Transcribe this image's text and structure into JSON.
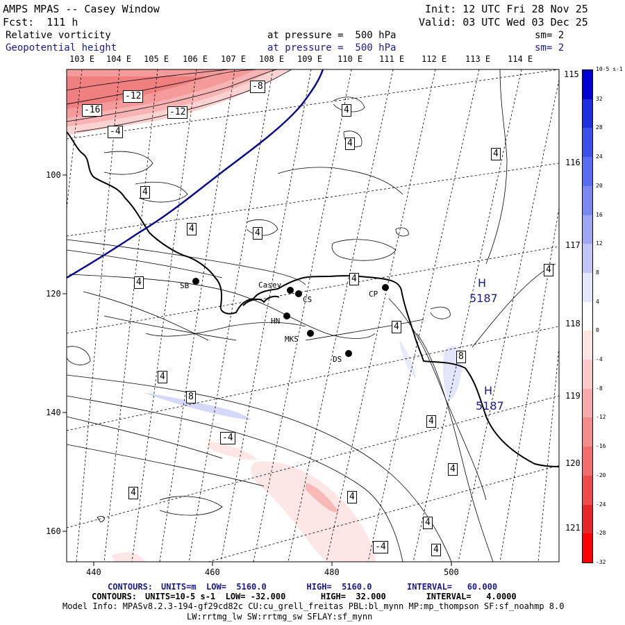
{
  "header": {
    "title": "AMPS MPAS -- Casey Window",
    "init": "Init: 12 UTC Fri 28 Nov 25",
    "forecast": "Fcst:  111 h",
    "valid": "Valid: 03 UTC Wed 03 Dec 25",
    "field1": {
      "name": "Relative vorticity",
      "pressure": "at pressure =  500 hPa",
      "smooth": "sm= 2"
    },
    "field2": {
      "name": "Geopotential height",
      "pressure": "at pressure =  500 hPa",
      "smooth": "sm= 2"
    }
  },
  "longitudes_top": [
    "103 E",
    "104 E",
    "105 E",
    "106 E",
    "107 E",
    "108 E",
    "109 E",
    "110 E",
    "111 E",
    "112 E",
    "113 E",
    "114 E"
  ],
  "longitudes_right": [
    "115 E",
    "116 E",
    "117 E",
    "118 E",
    "119 E",
    "120 E",
    "121 E"
  ],
  "x_ticks": [
    "440",
    "460",
    "480",
    "500"
  ],
  "y_ticks": [
    "100",
    "120",
    "140",
    "160"
  ],
  "stations": [
    "SB",
    "Casey",
    "CS",
    "HN",
    "MKS",
    "DS",
    "CP"
  ],
  "contour_labels": [
    "-12",
    "-16",
    "-12",
    "-4",
    "-8",
    "4",
    "4",
    "4",
    "4",
    "4",
    "4",
    "4",
    "4",
    "4",
    "4",
    "4",
    "8",
    "8",
    "-4",
    "4",
    "4",
    "4",
    "4",
    "4",
    "-4",
    "4"
  ],
  "highs": [
    {
      "label": "H",
      "value": "5187"
    },
    {
      "label": "H",
      "value": "5187"
    }
  ],
  "colorbar": {
    "unit": "10-5 s-1",
    "labels": [
      "32",
      "28",
      "24",
      "20",
      "16",
      "12",
      "8",
      "4",
      "0",
      "-4",
      "-8",
      "-12",
      "-16",
      "-20",
      "-24",
      "-28",
      "-32"
    ],
    "colors": [
      "#0000d0",
      "#1e2ee0",
      "#3c4fe8",
      "#5a6cef",
      "#7b88f2",
      "#9ea6f5",
      "#c0c5f8",
      "#e4e6fb",
      "#ffffff",
      "#fde4e4",
      "#fbc9c9",
      "#f8aaaa",
      "#f58c8c",
      "#f26d6d",
      "#ee4c4c",
      "#e82828",
      "#ff0000"
    ]
  },
  "footer": {
    "line1_label": "CONTOURS:",
    "line1": "UNITS=m  LOW=  5160.0        HIGH=  5160.0       INTERVAL=   60.000",
    "line2_label": "CONTOURS:",
    "line2": "UNITS=10-5 s-1  LOW= -32.000       HIGH=  32.000        INTERVAL=   4.0000",
    "line3": "Model Info: MPASv8.2.3-194-gf29cd82c CU:cu_grell_freitas PBL:bl_mynn MP:mp_thompson SF:sf_noahmp 8.0",
    "line4": "LW:rrtmg_lw SW:rrtmg_sw SFLAY:sf_mynn"
  }
}
